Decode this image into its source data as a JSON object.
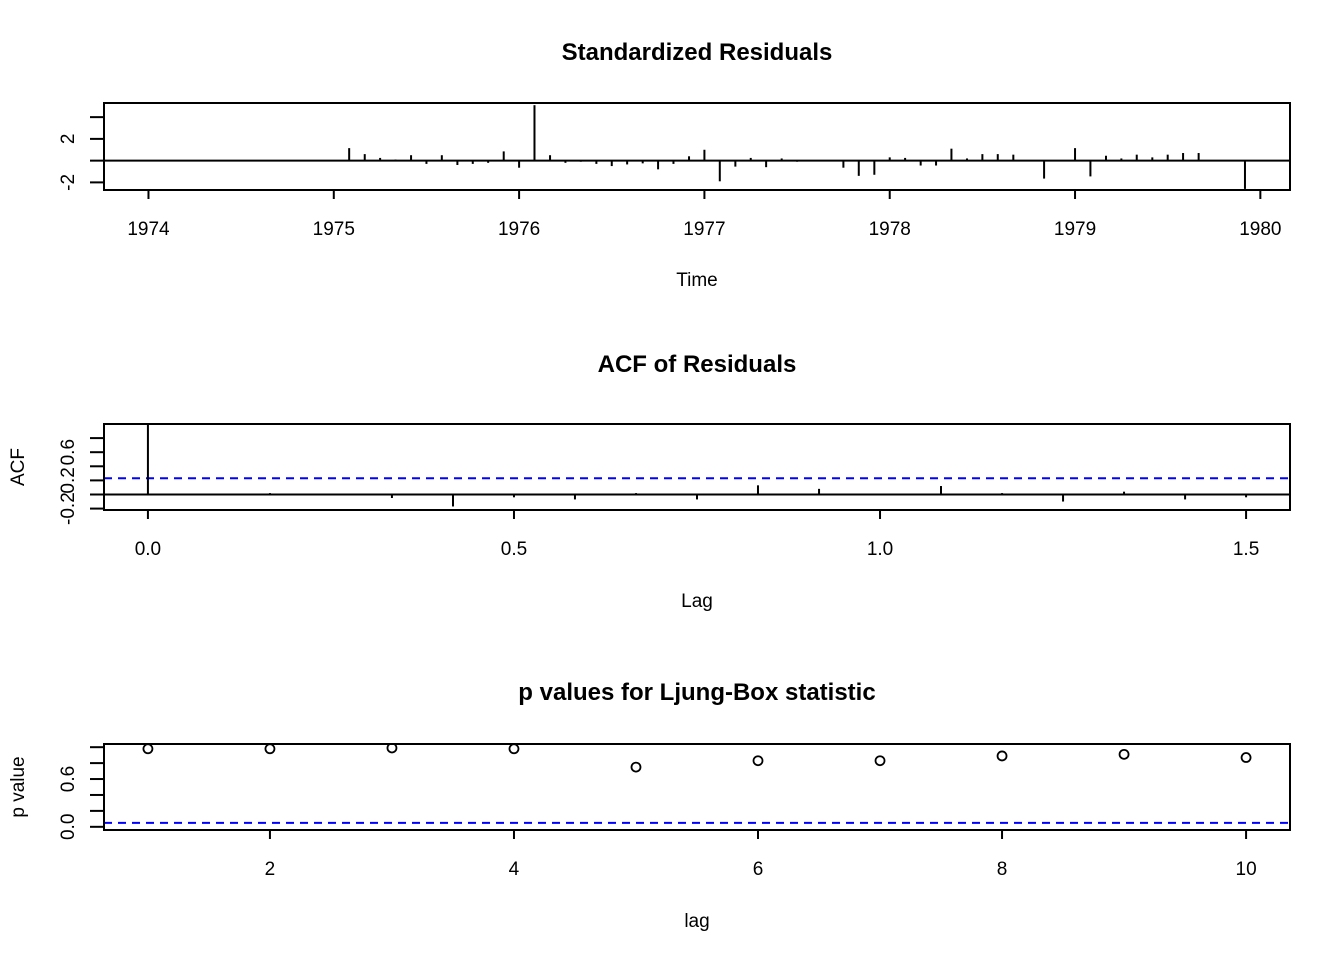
{
  "chart_data": [
    {
      "type": "line",
      "title": "Standardized Residuals",
      "xlabel": "Time",
      "ylabel": "",
      "xlim": [
        1973.76,
        1980.16
      ],
      "ylim": [
        -2.7,
        5.3
      ],
      "xticks": [
        1974,
        1975,
        1976,
        1977,
        1978,
        1979,
        1980
      ],
      "xtick_labels": [
        "1974",
        "1975",
        "1976",
        "1977",
        "1978",
        "1979",
        "1980"
      ],
      "yticks": [
        -2,
        0,
        2,
        4
      ],
      "ytick_labels": [
        "-2",
        "",
        "2",
        ""
      ],
      "reference_lines": [
        {
          "y": 0,
          "color": "#000000",
          "style": "solid"
        }
      ],
      "x": [
        1974.0,
        1974.083,
        1974.167,
        1974.25,
        1974.333,
        1974.417,
        1974.5,
        1974.583,
        1974.667,
        1974.75,
        1974.833,
        1974.917,
        1975.0,
        1975.083,
        1975.167,
        1975.25,
        1975.333,
        1975.417,
        1975.5,
        1975.583,
        1975.667,
        1975.75,
        1975.833,
        1975.917,
        1976.0,
        1976.083,
        1976.167,
        1976.25,
        1976.333,
        1976.417,
        1976.5,
        1976.583,
        1976.667,
        1976.75,
        1976.833,
        1976.917,
        1977.0,
        1977.083,
        1977.167,
        1977.25,
        1977.333,
        1977.417,
        1977.5,
        1977.583,
        1977.667,
        1977.75,
        1977.833,
        1977.917,
        1978.0,
        1978.083,
        1978.167,
        1978.25,
        1978.333,
        1978.417,
        1978.5,
        1978.583,
        1978.667,
        1978.75,
        1978.833,
        1978.917,
        1979.0,
        1979.083,
        1979.167,
        1979.25,
        1979.333,
        1979.417,
        1979.5,
        1979.583,
        1979.667,
        1979.75,
        1979.833,
        1979.917
      ],
      "values": [
        0.0,
        0.0,
        0.0,
        0.0,
        0.0,
        0.0,
        0.0,
        0.0,
        0.0,
        0.0,
        0.0,
        0.0,
        0.0,
        1.15,
        0.6,
        0.25,
        0.1,
        0.5,
        -0.3,
        0.5,
        -0.4,
        -0.3,
        -0.2,
        0.85,
        -0.65,
        5.1,
        0.5,
        -0.2,
        -0.1,
        -0.3,
        -0.5,
        -0.35,
        -0.25,
        -0.8,
        -0.3,
        0.4,
        1.0,
        -1.9,
        -0.55,
        0.25,
        -0.6,
        0.2,
        -0.1,
        0.05,
        0.0,
        -0.65,
        -1.4,
        -1.3,
        0.3,
        0.25,
        -0.45,
        -0.45,
        1.1,
        0.2,
        0.6,
        0.6,
        0.55,
        0.0,
        -1.65,
        0.0,
        1.15,
        -1.45,
        0.45,
        0.2,
        0.55,
        0.3,
        0.55,
        0.7,
        0.7,
        0.05,
        0.0,
        -2.6
      ]
    },
    {
      "type": "bar",
      "title": "ACF of Residuals",
      "xlabel": "Lag",
      "ylabel": "ACF",
      "xlim": [
        -0.06,
        1.56
      ],
      "ylim": [
        -0.22,
        1.0
      ],
      "xticks": [
        0.0,
        0.5,
        1.0,
        1.5
      ],
      "xtick_labels": [
        "0.0",
        "0.5",
        "1.0",
        "1.5"
      ],
      "yticks": [
        -0.2,
        0.0,
        0.2,
        0.4,
        0.6,
        0.8
      ],
      "ytick_labels": [
        "-0.2",
        "",
        "0.2",
        "",
        "0.6",
        ""
      ],
      "reference_lines": [
        {
          "y": 0,
          "color": "#000000",
          "style": "solid"
        },
        {
          "y": 0.231,
          "color": "#0000ff",
          "style": "dashed"
        },
        {
          "y": -0.231,
          "color": "#0000ff",
          "style": "dashed"
        }
      ],
      "lags": [
        0.0,
        0.0833,
        0.1667,
        0.25,
        0.3333,
        0.4167,
        0.5,
        0.5833,
        0.6667,
        0.75,
        0.8333,
        0.9167,
        1.0,
        1.0833,
        1.1667,
        1.25,
        1.3333,
        1.4167,
        1.5
      ],
      "values": [
        1.0,
        0.01,
        0.02,
        0.01,
        -0.05,
        -0.17,
        -0.04,
        -0.07,
        0.02,
        -0.07,
        0.13,
        0.08,
        -0.01,
        0.12,
        0.02,
        -0.1,
        0.04,
        -0.07,
        -0.04
      ]
    },
    {
      "type": "scatter",
      "title": "p values for Ljung-Box statistic",
      "xlabel": "lag",
      "ylabel": "p value",
      "xlim": [
        0.64,
        10.36
      ],
      "ylim": [
        -0.04,
        1.04
      ],
      "xticks": [
        2,
        4,
        6,
        8,
        10
      ],
      "xtick_labels": [
        "2",
        "4",
        "6",
        "8",
        "10"
      ],
      "yticks": [
        0.0,
        0.2,
        0.4,
        0.6,
        0.8,
        1.0
      ],
      "ytick_labels": [
        "0.0",
        "",
        "",
        "0.6",
        "",
        ""
      ],
      "reference_lines": [
        {
          "y": 0.05,
          "color": "#0000ff",
          "style": "dashed"
        }
      ],
      "x": [
        1,
        2,
        3,
        4,
        5,
        6,
        7,
        8,
        9,
        10
      ],
      "values": [
        0.98,
        0.98,
        0.99,
        0.98,
        0.75,
        0.83,
        0.83,
        0.89,
        0.91,
        0.87
      ]
    }
  ]
}
